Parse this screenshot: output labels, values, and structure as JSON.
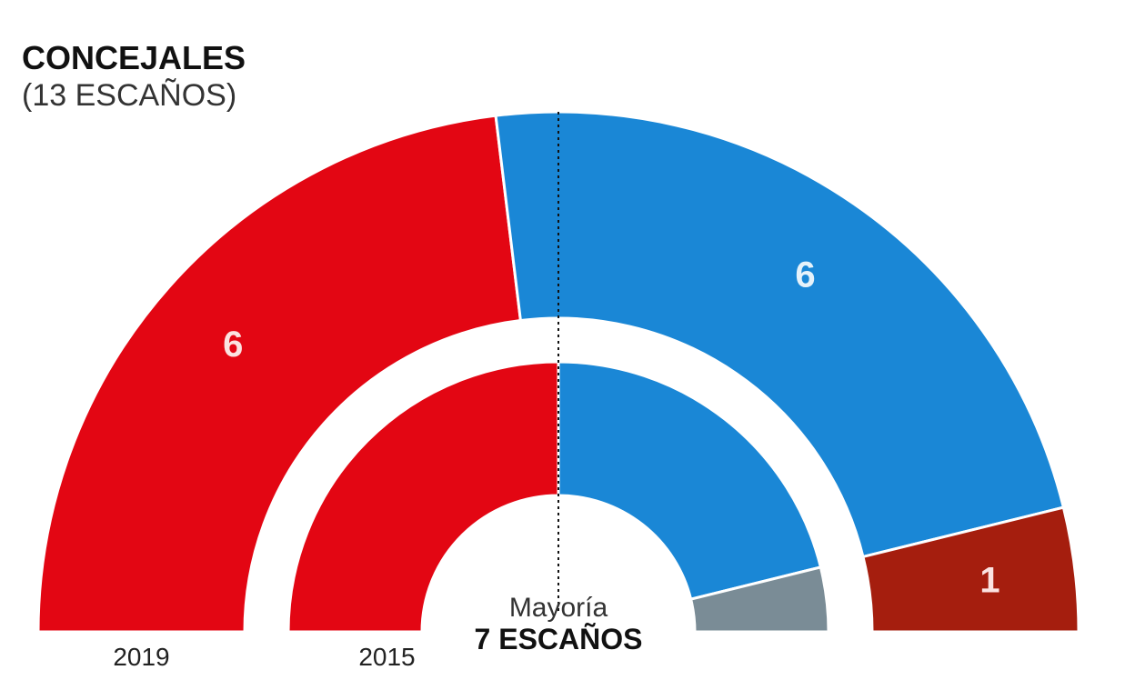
{
  "chart_data": {
    "type": "semicircle-parliament",
    "title": "CONCEJALES",
    "subtitle": "(13 ESCAÑOS)",
    "total_seats": 13,
    "majority": {
      "label": "Mayoría",
      "value": "7 ESCAÑOS",
      "seats": 7
    },
    "rings": [
      {
        "year": "2019",
        "segments": [
          {
            "seats": 6,
            "color": "#e30613",
            "label": "6"
          },
          {
            "seats": 6,
            "color": "#1a87d6",
            "label": "6"
          },
          {
            "seats": 1,
            "color": "#a51e0e",
            "label": "1"
          }
        ]
      },
      {
        "year": "2015",
        "segments": [
          {
            "seats": 6.5,
            "color": "#e30613"
          },
          {
            "seats": 5.5,
            "color": "#1a87d6"
          },
          {
            "seats": 1,
            "color": "#7a8c96"
          }
        ]
      }
    ]
  }
}
